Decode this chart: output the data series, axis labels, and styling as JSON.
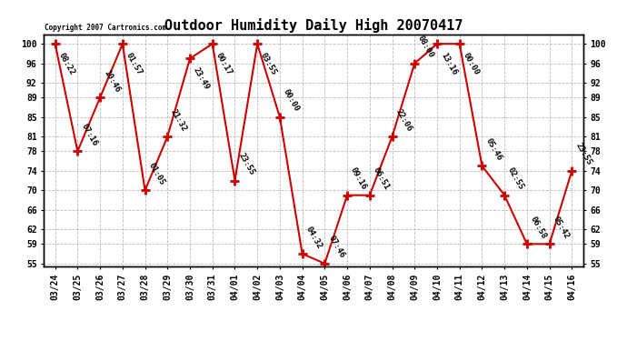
{
  "title": "Outdoor Humidity Daily High 20070417",
  "copyright": "Copyright 2007 Cartronics.com",
  "x_labels": [
    "03/24",
    "03/25",
    "03/26",
    "03/27",
    "03/28",
    "03/29",
    "03/30",
    "03/31",
    "04/01",
    "04/02",
    "04/03",
    "04/04",
    "04/05",
    "04/06",
    "04/07",
    "04/08",
    "04/09",
    "04/10",
    "04/11",
    "04/12",
    "04/13",
    "04/14",
    "04/15",
    "04/16"
  ],
  "point_labels": [
    "08:22",
    "07:16",
    "10:46",
    "01:57",
    "01:05",
    "21:32",
    "23:49",
    "00:17",
    "23:55",
    "03:55",
    "00:00",
    "04:32",
    "07:46",
    "09:16",
    "06:51",
    "22:06",
    "08:00",
    "13:16",
    "00:00",
    "05:46",
    "02:55",
    "06:58",
    "05:42",
    "23:55"
  ],
  "y_values": [
    100,
    78,
    89,
    100,
    70,
    81,
    97,
    100,
    72,
    100,
    85,
    57,
    55,
    69,
    69,
    81,
    96,
    100,
    100,
    75,
    69,
    59,
    59,
    74
  ],
  "ylim_min": 55,
  "ylim_max": 100,
  "yticks": [
    55,
    59,
    62,
    66,
    70,
    74,
    78,
    81,
    85,
    89,
    92,
    96,
    100
  ],
  "line_color": "#cc0000",
  "bg_color": "#ffffff",
  "grid_color": "#bbbbbb",
  "title_fontsize": 11,
  "tick_fontsize": 7,
  "label_fontsize": 6.5
}
